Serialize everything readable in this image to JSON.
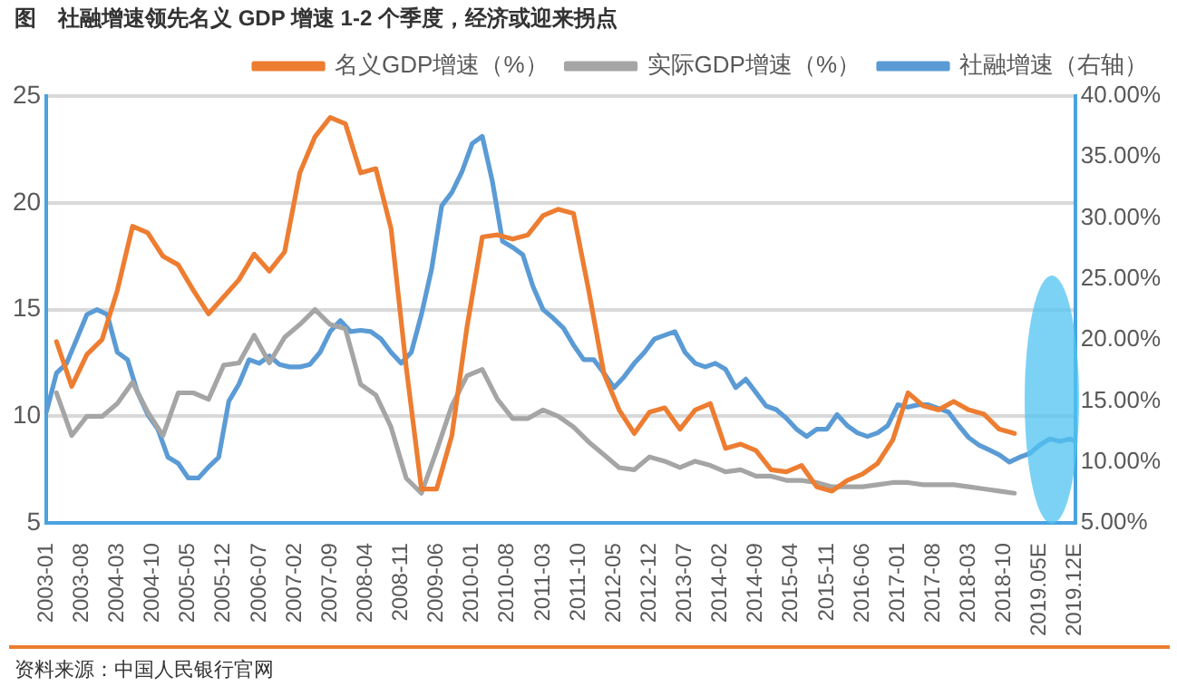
{
  "chart_data": {
    "type": "line",
    "title": "图　社融增速领先名义 GDP 增速 1-2 个季度，经济或迎来拐点",
    "categories": [
      "2003-01",
      null,
      null,
      null,
      null,
      null,
      null,
      "2003-08",
      null,
      null,
      null,
      null,
      null,
      null,
      "2004-03",
      null,
      null,
      null,
      null,
      null,
      null,
      "2004-10",
      null,
      null,
      null,
      null,
      null,
      null,
      "2005-05",
      null,
      null,
      null,
      null,
      null,
      null,
      "2005-12",
      null,
      null,
      null,
      null,
      null,
      null,
      "2006-07",
      null,
      null,
      null,
      null,
      null,
      null,
      "2007-02",
      null,
      null,
      null,
      null,
      null,
      null,
      "2007-09",
      null,
      null,
      null,
      null,
      null,
      null,
      "2008-04",
      null,
      null,
      null,
      null,
      null,
      null,
      "2008-11",
      null,
      null,
      null,
      null,
      null,
      null,
      "2009-06",
      null,
      null,
      null,
      null,
      null,
      null,
      "2010-01",
      null,
      null,
      null,
      null,
      null,
      null,
      "2010-08",
      null,
      null,
      null,
      null,
      null,
      null,
      "2011-03",
      null,
      null,
      null,
      null,
      null,
      null,
      "2011-10",
      null,
      null,
      null,
      null,
      null,
      null,
      "2012-05",
      null,
      null,
      null,
      null,
      null,
      null,
      "2012-12",
      null,
      null,
      null,
      null,
      null,
      null,
      "2013-07",
      null,
      null,
      null,
      null,
      null,
      null,
      "2014-02",
      null,
      null,
      null,
      null,
      null,
      null,
      "2014-09",
      null,
      null,
      null,
      null,
      null,
      null,
      "2015-04",
      null,
      null,
      null,
      null,
      null,
      null,
      "2015-11",
      null,
      null,
      null,
      null,
      null,
      null,
      "2016-06",
      null,
      null,
      null,
      null,
      null,
      null,
      "2017-01",
      null,
      null,
      null,
      null,
      null,
      null,
      "2017-08",
      null,
      null,
      null,
      null,
      null,
      null,
      "2018-03",
      null,
      null,
      null,
      null,
      null,
      null,
      "2018-10",
      null,
      null,
      null,
      null,
      null,
      null,
      "2019.05E",
      null,
      null,
      null,
      null,
      null,
      null,
      "2019.12E"
    ],
    "series": [
      {
        "name": "名义GDP增速（%）",
        "color": "#ed7d31",
        "values": [
          null,
          null,
          13.5,
          null,
          null,
          11.4,
          null,
          null,
          12.9,
          null,
          null,
          13.6,
          null,
          null,
          15.9,
          null,
          null,
          18.9,
          null,
          null,
          18.6,
          null,
          null,
          17.5,
          null,
          null,
          17.1,
          null,
          null,
          15.9,
          null,
          null,
          14.8,
          null,
          null,
          15.6,
          null,
          null,
          16.4,
          null,
          null,
          17.6,
          null,
          null,
          16.8,
          null,
          null,
          17.7,
          null,
          null,
          21.4,
          null,
          null,
          23.1,
          null,
          null,
          24.0,
          null,
          null,
          23.7,
          null,
          null,
          21.4,
          null,
          null,
          21.6,
          null,
          null,
          18.8,
          null,
          null,
          12.3,
          null,
          null,
          6.6,
          null,
          null,
          6.6,
          null,
          null,
          9.1,
          null,
          null,
          14.2,
          null,
          null,
          18.4,
          null,
          null,
          18.5,
          null,
          null,
          18.3,
          null,
          null,
          18.5,
          null,
          null,
          19.4,
          null,
          null,
          19.7,
          null,
          null,
          19.5,
          null,
          null,
          15.9,
          null,
          null,
          12.0,
          null,
          null,
          10.3,
          null,
          null,
          9.2,
          null,
          null,
          10.2,
          null,
          null,
          10.4,
          null,
          null,
          9.4,
          null,
          null,
          10.3,
          null,
          null,
          10.6,
          null,
          null,
          8.5,
          null,
          null,
          8.7,
          null,
          null,
          8.4,
          null,
          null,
          7.5,
          null,
          null,
          7.4,
          null,
          null,
          7.7,
          null,
          null,
          6.7,
          null,
          null,
          6.5,
          null,
          null,
          7.0,
          null,
          null,
          7.3,
          null,
          null,
          7.8,
          null,
          null,
          8.9,
          null,
          null,
          11.1,
          null,
          null,
          10.5,
          null,
          null,
          10.3,
          null,
          null,
          10.7,
          null,
          null,
          10.3,
          null,
          null,
          10.1,
          null,
          null,
          9.4,
          null,
          null,
          9.2,
          null,
          null,
          null,
          null,
          null,
          null,
          null,
          null,
          null,
          null,
          null,
          null
        ]
      },
      {
        "name": "实际GDP增速（%）",
        "color": "#a5a5a5",
        "values": [
          null,
          null,
          11.1,
          null,
          null,
          9.1,
          null,
          null,
          10.0,
          null,
          null,
          10.0,
          null,
          null,
          10.6,
          null,
          null,
          11.6,
          null,
          null,
          10.2,
          null,
          null,
          9.1,
          null,
          null,
          11.1,
          null,
          null,
          11.1,
          null,
          null,
          10.8,
          null,
          null,
          12.4,
          null,
          null,
          12.5,
          null,
          null,
          13.8,
          null,
          null,
          12.5,
          null,
          null,
          13.7,
          null,
          null,
          14.3,
          null,
          null,
          15.0,
          null,
          null,
          14.3,
          null,
          null,
          14.1,
          null,
          null,
          11.5,
          null,
          null,
          11.0,
          null,
          null,
          9.5,
          null,
          null,
          7.1,
          null,
          null,
          6.4,
          null,
          null,
          8.4,
          null,
          null,
          10.5,
          null,
          null,
          11.9,
          null,
          null,
          12.2,
          null,
          null,
          10.8,
          null,
          null,
          9.9,
          null,
          null,
          9.9,
          null,
          null,
          10.3,
          null,
          null,
          10.0,
          null,
          null,
          9.5,
          null,
          null,
          8.8,
          null,
          null,
          8.2,
          null,
          null,
          7.6,
          null,
          null,
          7.5,
          null,
          null,
          8.1,
          null,
          null,
          7.9,
          null,
          null,
          7.6,
          null,
          null,
          7.9,
          null,
          null,
          7.7,
          null,
          null,
          7.4,
          null,
          null,
          7.5,
          null,
          null,
          7.2,
          null,
          null,
          7.2,
          null,
          null,
          7.0,
          null,
          null,
          7.0,
          null,
          null,
          6.9,
          null,
          null,
          6.7,
          null,
          null,
          6.7,
          null,
          null,
          6.7,
          null,
          null,
          6.8,
          null,
          null,
          6.9,
          null,
          null,
          6.9,
          null,
          null,
          6.8,
          null,
          null,
          6.8,
          null,
          null,
          6.8,
          null,
          null,
          6.7,
          null,
          null,
          6.6,
          null,
          null,
          6.5,
          null,
          null,
          6.4,
          null,
          null,
          null,
          null,
          null,
          null,
          null,
          null,
          null,
          null,
          null,
          null
        ]
      },
      {
        "name": "社融增速（右轴）",
        "color": "#5b9bd5",
        "axis": "y2",
        "values": [
          14.1,
          null,
          17.3,
          null,
          18.1,
          null,
          20.1,
          null,
          22.1,
          null,
          22.5,
          null,
          22.1,
          null,
          19.0,
          null,
          18.4,
          null,
          15.7,
          null,
          13.9,
          null,
          12.7,
          null,
          10.4,
          null,
          9.9,
          null,
          8.7,
          null,
          8.7,
          null,
          9.6,
          null,
          10.4,
          null,
          15.0,
          null,
          16.4,
          null,
          18.4,
          null,
          18.1,
          null,
          18.7,
          null,
          18.0,
          null,
          17.8,
          null,
          17.8,
          null,
          18.0,
          null,
          19.0,
          null,
          20.7,
          null,
          21.6,
          null,
          20.7,
          null,
          20.8,
          null,
          20.7,
          null,
          20.1,
          null,
          19.0,
          null,
          18.1,
          null,
          19.0,
          null,
          22.1,
          null,
          25.8,
          null,
          31.0,
          null,
          32.1,
          null,
          33.8,
          null,
          36.1,
          null,
          36.7,
          null,
          33.0,
          null,
          28.1,
          null,
          27.6,
          null,
          27.0,
          null,
          24.4,
          null,
          22.5,
          null,
          21.8,
          null,
          21.0,
          null,
          19.6,
          null,
          18.4,
          null,
          18.4,
          null,
          17.3,
          null,
          16.1,
          null,
          17.0,
          null,
          18.1,
          null,
          19.0,
          null,
          20.1,
          null,
          20.4,
          null,
          20.7,
          null,
          19.0,
          null,
          18.1,
          null,
          17.8,
          null,
          18.1,
          null,
          17.6,
          null,
          16.1,
          null,
          16.8,
          null,
          15.7,
          null,
          14.6,
          null,
          14.3,
          null,
          13.6,
          null,
          12.7,
          null,
          12.1,
          null,
          12.7,
          null,
          12.7,
          null,
          13.9,
          null,
          13.0,
          null,
          12.4,
          null,
          12.1,
          null,
          12.4,
          null,
          13.0,
          null,
          14.7,
          null,
          14.5,
          null,
          14.7,
          null,
          14.7,
          null,
          14.4,
          null,
          14.1,
          null,
          13.0,
          null,
          12.0,
          null,
          11.4,
          null,
          11.0,
          null,
          10.6,
          null,
          10.0,
          null,
          10.4,
          null,
          10.7,
          null,
          11.4,
          null,
          11.9,
          null,
          11.7,
          null,
          11.9,
          11.7
        ]
      }
    ],
    "ylim": [
      5,
      25
    ],
    "yticks": [
      5,
      10,
      15,
      20,
      25
    ],
    "y2lim": [
      5,
      40
    ],
    "y2ticks": [
      {
        "value": 5,
        "label": "5.00%"
      },
      {
        "value": 10,
        "label": "10.00%"
      },
      {
        "value": 15,
        "label": "15.00%"
      },
      {
        "value": 20,
        "label": "20.00%"
      },
      {
        "value": 25,
        "label": "25.00%"
      },
      {
        "value": 30,
        "label": "30.00%"
      },
      {
        "value": 35,
        "label": "35.00%"
      },
      {
        "value": 40,
        "label": "40.00%"
      }
    ],
    "grid": "y",
    "legend": "top",
    "marker": "none",
    "line_style": "solid",
    "annotations": [
      "资料来源：中国人民银行官网"
    ]
  }
}
